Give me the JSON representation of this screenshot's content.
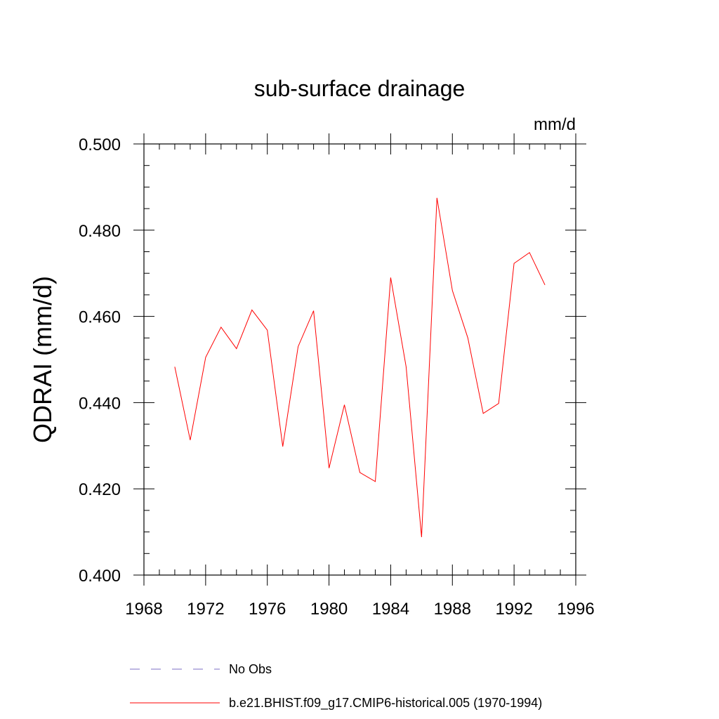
{
  "chart_data": {
    "type": "line",
    "title": "sub-surface drainage",
    "units_label": "mm/d",
    "ylabel": "QDRAI  (mm/d)",
    "xlabel": "",
    "xlim": [
      1968,
      1996
    ],
    "ylim": [
      0.4,
      0.5
    ],
    "x_ticks": [
      1968,
      1972,
      1976,
      1980,
      1984,
      1988,
      1992,
      1996
    ],
    "x_tick_labels": [
      "1968",
      "1972",
      "1976",
      "1980",
      "1984",
      "1988",
      "1992",
      "1996"
    ],
    "y_ticks": [
      0.4,
      0.42,
      0.44,
      0.46,
      0.48,
      0.5
    ],
    "y_tick_labels": [
      "0.400",
      "0.420",
      "0.440",
      "0.460",
      "0.480",
      "0.500"
    ],
    "series": [
      {
        "name": "b.e21.BHIST.f09_g17.CMIP6-historical.005 (1970-1994)",
        "color": "#ff0000",
        "style": "solid",
        "x": [
          1970,
          1971,
          1972,
          1973,
          1974,
          1975,
          1976,
          1977,
          1978,
          1979,
          1980,
          1981,
          1982,
          1983,
          1984,
          1985,
          1986,
          1987,
          1988,
          1989,
          1990,
          1991,
          1992,
          1993,
          1994
        ],
        "values": [
          0.4483,
          0.4313,
          0.4505,
          0.4575,
          0.4525,
          0.4615,
          0.4568,
          0.4298,
          0.453,
          0.4613,
          0.4248,
          0.4395,
          0.4238,
          0.4217,
          0.469,
          0.4483,
          0.4088,
          0.4875,
          0.466,
          0.455,
          0.4375,
          0.4398,
          0.4723,
          0.4748,
          0.4673
        ]
      }
    ],
    "legend": [
      {
        "label": "No Obs",
        "color": "#7b6fc4",
        "style": "dashed"
      },
      {
        "label": "b.e21.BHIST.f09_g17.CMIP6-historical.005 (1970-1994)",
        "color": "#ff0000",
        "style": "solid"
      }
    ],
    "legend_position": "bottom"
  }
}
